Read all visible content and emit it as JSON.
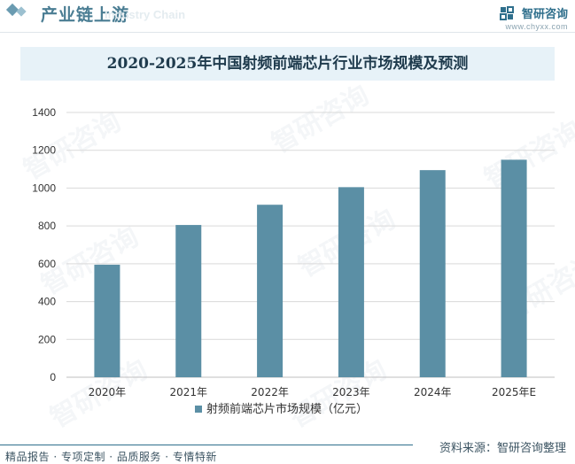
{
  "header": {
    "section_title": "产业链上游",
    "section_ghost": "Industry Chain",
    "brand_name": "智研咨询",
    "brand_url": "www.chyxx.com",
    "accent": "#2f6f8c"
  },
  "watermark_text": "智研咨询",
  "chart_data": {
    "type": "bar",
    "title": "2020-2025年中国射频前端芯片行业市场规模及预测",
    "categories": [
      "2020年",
      "2021年",
      "2022年",
      "2023年",
      "2024年",
      "2025年E"
    ],
    "series": [
      {
        "name": "射频前端芯片市场规模（亿元）",
        "values": [
          595,
          805,
          912,
          1005,
          1095,
          1150
        ],
        "color": "#5b8fa5"
      }
    ],
    "ylim": [
      0,
      1400
    ],
    "yticks": [
      0,
      200,
      400,
      600,
      800,
      1000,
      1200,
      1400
    ],
    "grid": true,
    "legend": "bottom-center"
  },
  "footer": {
    "left": "精品报告 · 专项定制 · 品质服务 · 专情特新",
    "right": "资料来源：智研咨询整理"
  }
}
